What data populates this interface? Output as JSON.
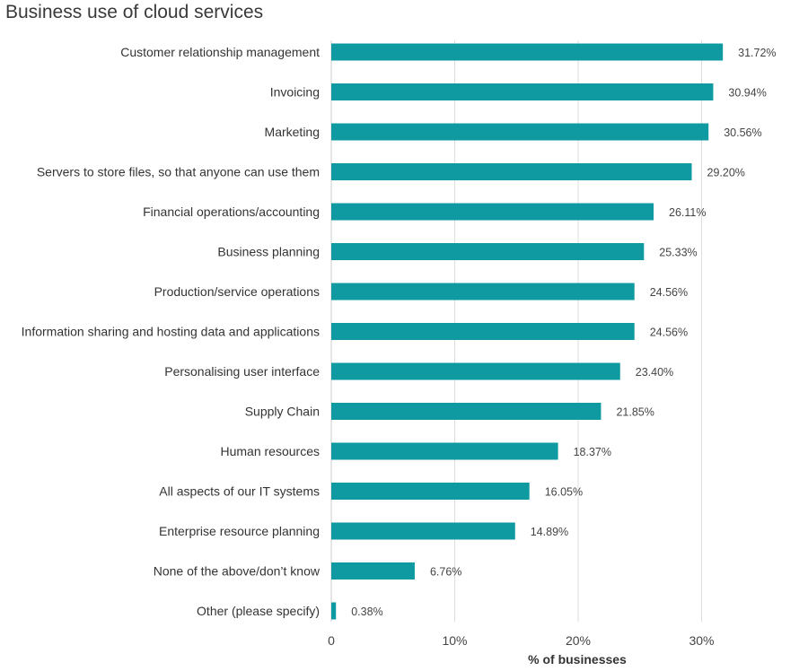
{
  "chart_data": {
    "type": "bar",
    "orientation": "horizontal",
    "title": "Business use of cloud services",
    "xlabel": "% of businesses",
    "ylabel": "",
    "xlim": [
      0,
      34
    ],
    "xticks": [
      {
        "value": 0,
        "label": "0"
      },
      {
        "value": 10,
        "label": "10%"
      },
      {
        "value": 20,
        "label": "20%"
      },
      {
        "value": 30,
        "label": "30%"
      }
    ],
    "grid": true,
    "bar_color": "#0e9aa0",
    "categories": [
      "Customer relationship management",
      "Invoicing",
      "Marketing",
      "Servers to store files, so that anyone can use them",
      "Financial operations/accounting",
      "Business planning",
      "Production/service operations",
      "Information sharing and hosting data and applications",
      "Personalising user interface",
      "Supply Chain",
      "Human resources",
      "All aspects of our IT systems",
      "Enterprise resource planning",
      "None of the above/don’t know",
      "Other (please specify)"
    ],
    "values": [
      31.72,
      30.94,
      30.56,
      29.2,
      26.11,
      25.33,
      24.56,
      24.56,
      23.4,
      21.85,
      18.37,
      16.05,
      14.89,
      6.76,
      0.38
    ],
    "value_labels": [
      "31.72%",
      "30.94%",
      "30.56%",
      "29.20%",
      "26.11%",
      "25.33%",
      "24.56%",
      "24.56%",
      "23.40%",
      "21.85%",
      "18.37%",
      "16.05%",
      "14.89%",
      "6.76%",
      "0.38%"
    ]
  }
}
